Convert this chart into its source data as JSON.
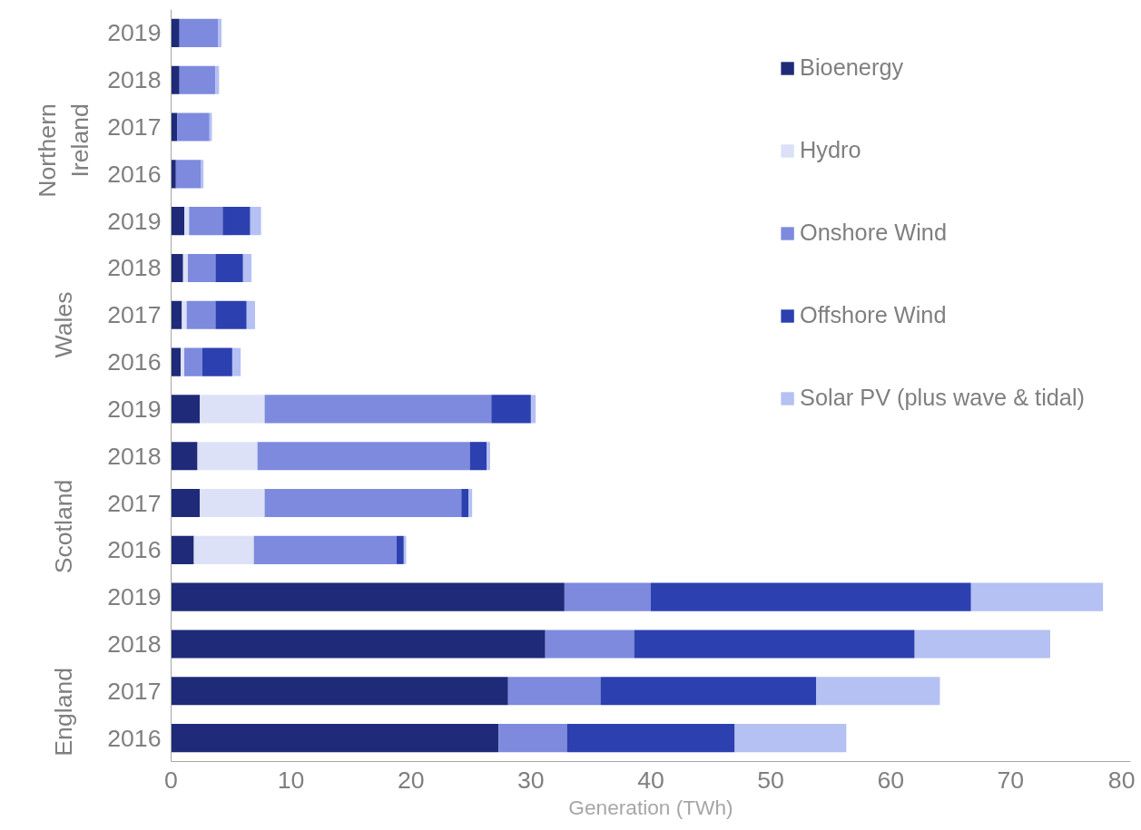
{
  "chart_data": {
    "type": "bar",
    "orientation": "horizontal",
    "stacked": true,
    "xlabel": "Generation (TWh)",
    "categories": [
      "2019",
      "2018",
      "2017",
      "2016",
      "2019",
      "2018",
      "2017",
      "2016",
      "2019",
      "2018",
      "2017",
      "2016",
      "2019",
      "2018",
      "2017",
      "2016"
    ],
    "annotations": [
      "Northern\nIreland",
      "Wales",
      "Scotland",
      "England"
    ],
    "series": [
      {
        "name": "Bioenergy",
        "color": "#1f2a78",
        "values": [
          0.7,
          0.7,
          0.5,
          0.4,
          1.1,
          1.0,
          0.9,
          0.8,
          2.4,
          2.2,
          2.4,
          1.9,
          32.8,
          31.2,
          28.1,
          27.3
        ]
      },
      {
        "name": "Hydro",
        "color": "#dce1f7",
        "values": [
          null,
          0,
          0,
          0,
          0.4,
          0.4,
          0.4,
          0.3,
          5.4,
          5.0,
          5.4,
          5.0,
          null,
          null,
          null,
          null
        ]
      },
      {
        "name": "Onshore Wind",
        "color": "#7d8ade",
        "values": [
          3.2,
          3.0,
          2.7,
          2.1,
          2.8,
          2.3,
          2.4,
          1.5,
          18.9,
          17.7,
          16.4,
          11.9,
          7.2,
          7.4,
          7.7,
          5.7
        ]
      },
      {
        "name": "Offshore Wind",
        "color": "#2c40b0",
        "values": [
          0,
          0,
          0,
          0,
          2.3,
          2.3,
          2.6,
          2.5,
          3.3,
          1.4,
          0.6,
          0.6,
          26.7,
          23.4,
          18.0,
          14.0
        ]
      },
      {
        "name": "Solar PV (plus wave & tidal)",
        "color": "#b5c0f3",
        "values": [
          0.3,
          0.3,
          0.2,
          0.2,
          0.9,
          0.7,
          0.7,
          0.7,
          0.4,
          0.3,
          0.3,
          0.2,
          11.0,
          11.3,
          10.3,
          9.3
        ]
      }
    ],
    "xlim": [
      0,
      80
    ],
    "xticks": [
      0,
      10,
      20,
      30,
      40,
      50,
      60,
      70,
      80
    ],
    "grid": false,
    "legend": "top right"
  }
}
